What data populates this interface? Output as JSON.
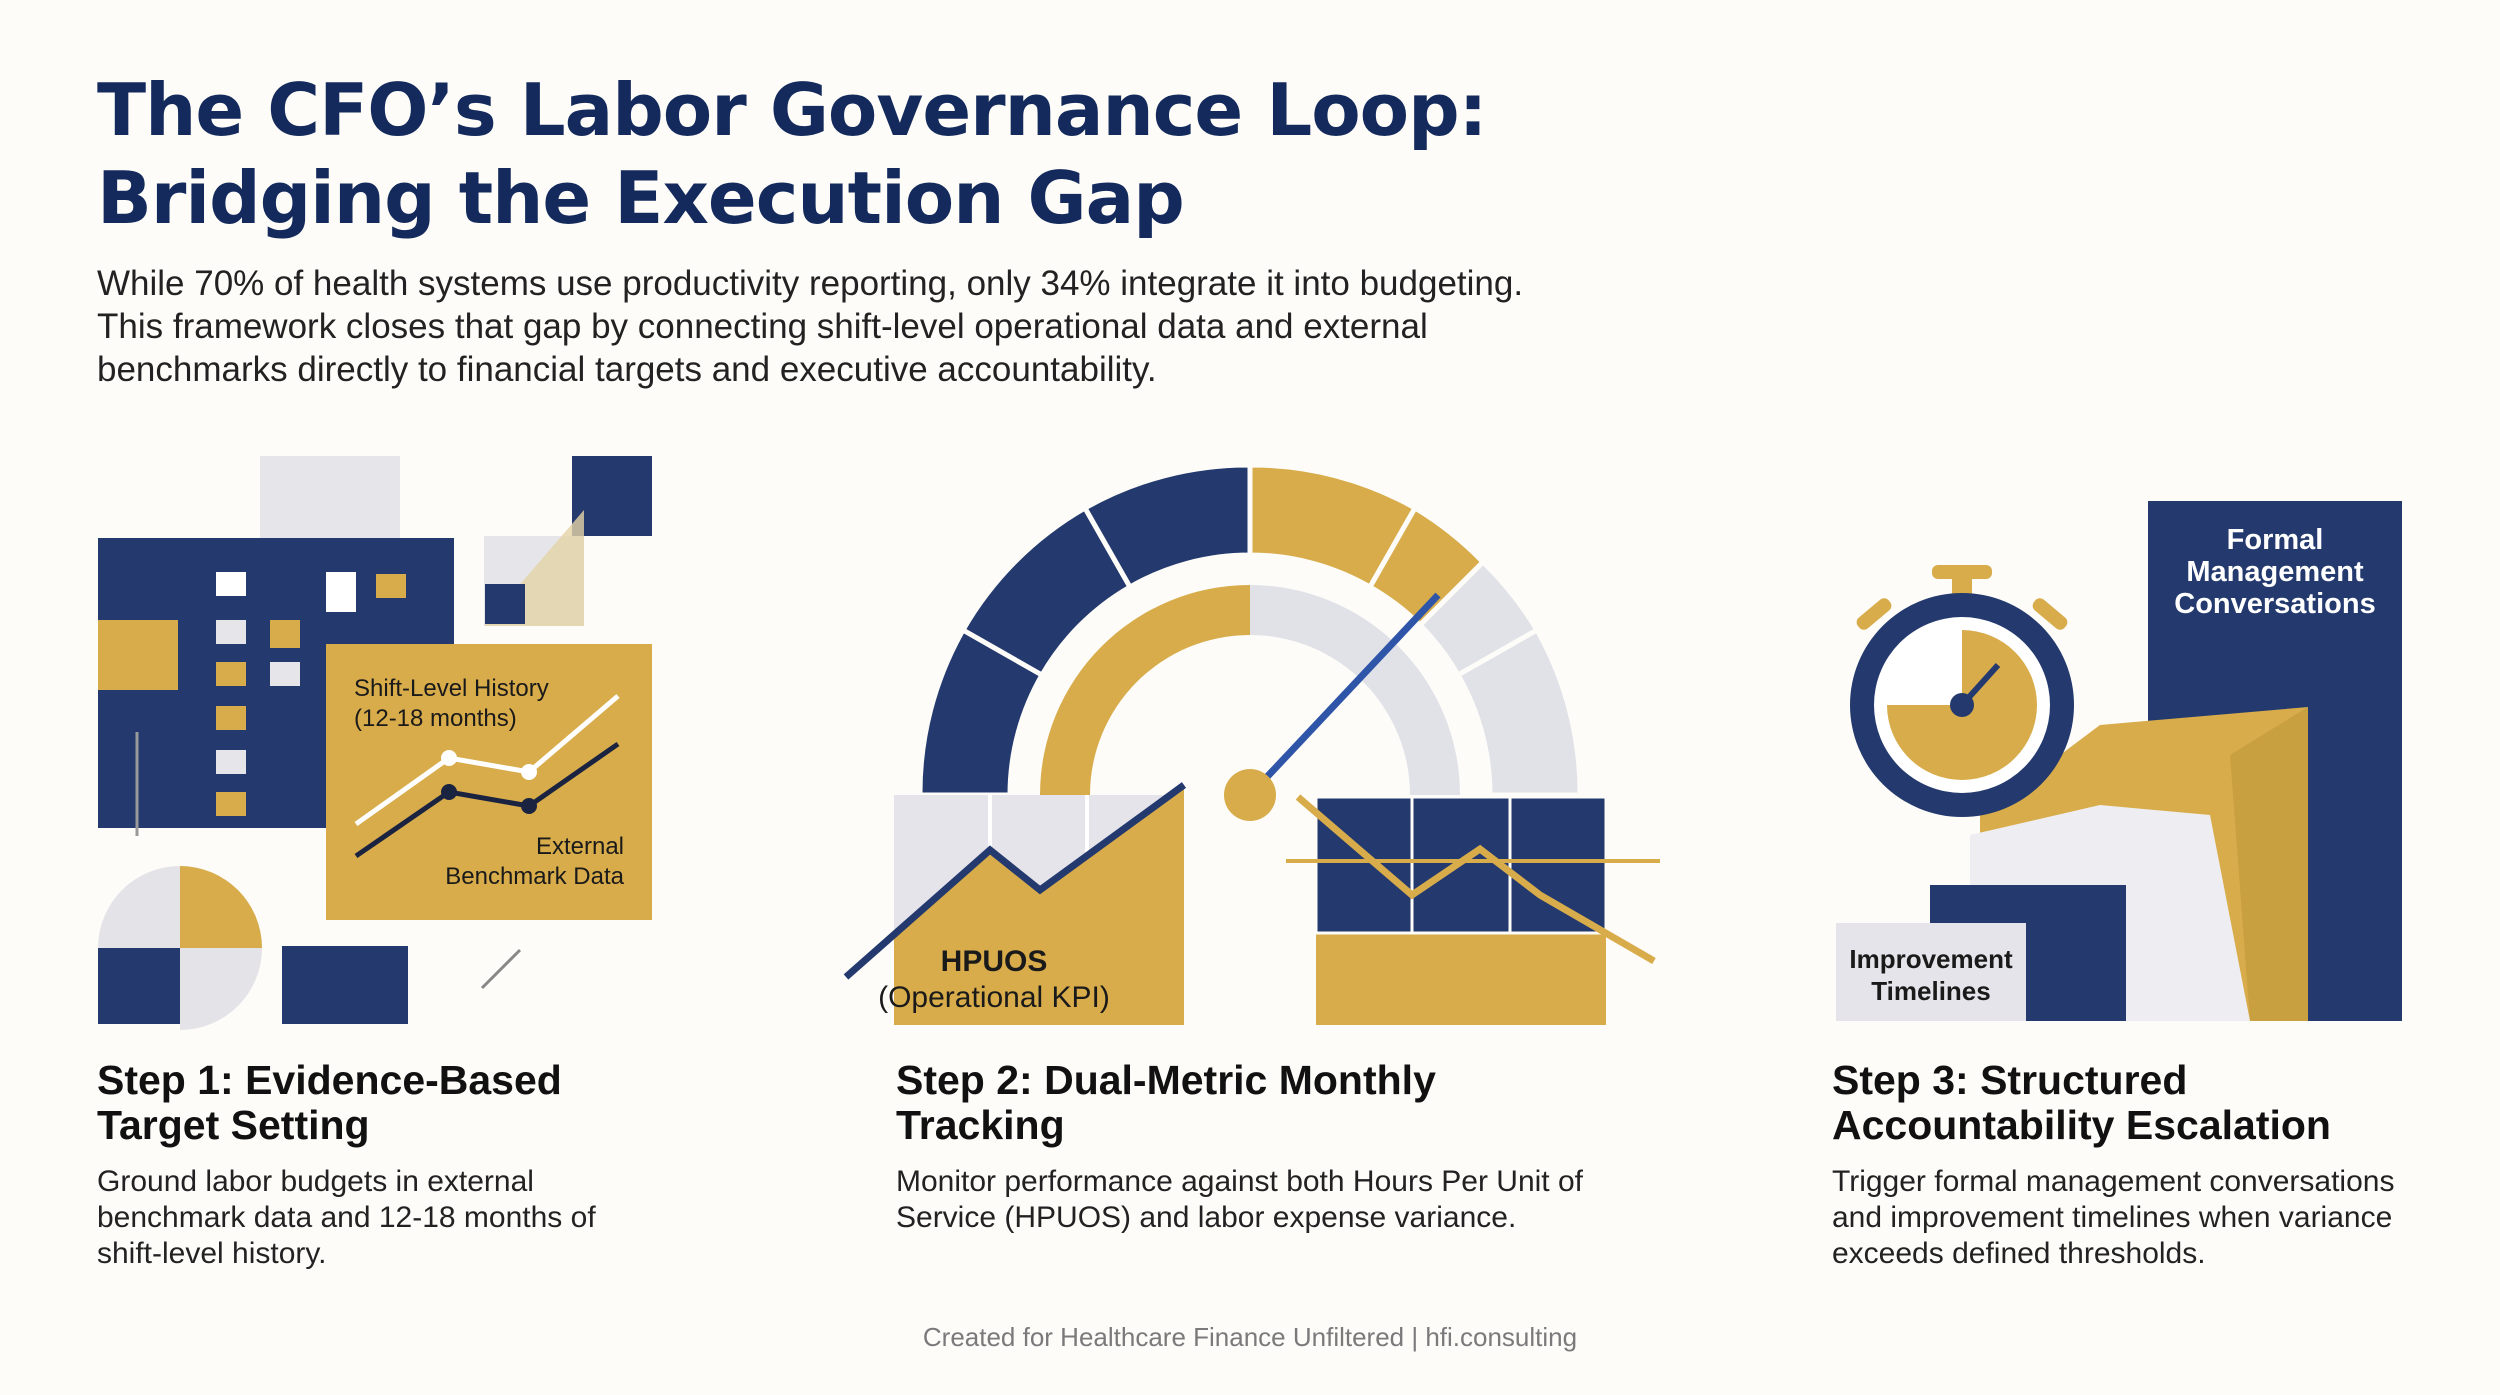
{
  "title": {
    "line1": "The CFO’s Labor Governance Loop:",
    "line2": "Bridging the Execution Gap"
  },
  "intro": {
    "line1": "While 70% of health systems use productivity reporting, only 34% integrate it into budgeting.",
    "line2": "This framework closes that gap by connecting shift-level operational data and external",
    "line3": "benchmarks directly to financial targets and executive accountability."
  },
  "colors": {
    "navy": "#243a6e",
    "gold": "#d8ac4a",
    "light_gray": "#e1e2e8",
    "title_navy": "#142a5c",
    "line_blue": "#2f55a8"
  },
  "illustration1": {
    "label_history_1": "Shift-Level History",
    "label_history_2": "(12-18 months)",
    "label_benchmark_1": "External",
    "label_benchmark_2": "Benchmark Data"
  },
  "illustration2": {
    "label_metric": "HPUOS",
    "label_metric_sub": "(Operational KPI)"
  },
  "illustration3": {
    "label_formal_1": "Formal",
    "label_formal_2": "Management",
    "label_formal_3": "Conversations",
    "label_improve_1": "Improvement",
    "label_improve_2": "Timelines",
    "icon": "stopwatch-icon"
  },
  "steps": [
    {
      "title_1": "Step 1: Evidence-Based",
      "title_2": "Target Setting",
      "desc_1": "Ground labor budgets in external",
      "desc_2": "benchmark data and 12-18 months of",
      "desc_3": "shift-level history."
    },
    {
      "title_1": "Step 2: Dual-Metric Monthly",
      "title_2": "Tracking",
      "desc_1": "Monitor performance against both Hours Per Unit of",
      "desc_2": "Service (HPUOS) and labor expense variance."
    },
    {
      "title_1": "Step 3: Structured",
      "title_2": "Accountability Escalation",
      "desc_1": "Trigger formal management conversations",
      "desc_2": "and improvement timelines when variance",
      "desc_3": "exceeds defined thresholds."
    }
  ],
  "footer": "Created for Healthcare Finance Unfiltered | hfi.consulting"
}
